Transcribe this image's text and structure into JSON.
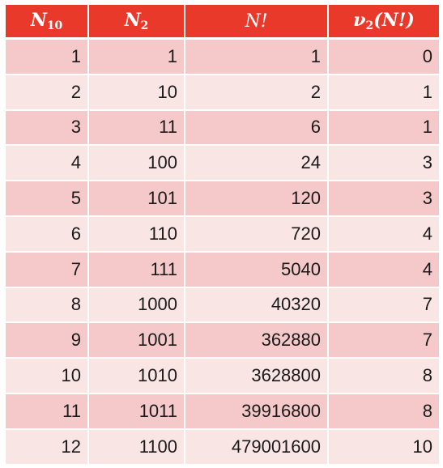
{
  "table": {
    "headers": {
      "c1_main": "N",
      "c1_sub": "10",
      "c2_main": "N",
      "c2_sub": "2",
      "c3": "N!",
      "c4_main": "ν",
      "c4_sub": "2",
      "c4_arg": "(N!)"
    },
    "rows": [
      [
        "1",
        "1",
        "1",
        "0"
      ],
      [
        "2",
        "10",
        "2",
        "1"
      ],
      [
        "3",
        "11",
        "6",
        "1"
      ],
      [
        "4",
        "100",
        "24",
        "3"
      ],
      [
        "5",
        "101",
        "120",
        "3"
      ],
      [
        "6",
        "110",
        "720",
        "4"
      ],
      [
        "7",
        "111",
        "5040",
        "4"
      ],
      [
        "8",
        "1000",
        "40320",
        "7"
      ],
      [
        "9",
        "1001",
        "362880",
        "7"
      ],
      [
        "10",
        "1010",
        "3628800",
        "8"
      ],
      [
        "11",
        "1011",
        "39916800",
        "8"
      ],
      [
        "12",
        "1100",
        "479001600",
        "10"
      ]
    ]
  },
  "colors": {
    "header_bg": "#e8392b",
    "row_odd_bg": "#f5c9c9",
    "row_even_bg": "#fae5e5"
  }
}
